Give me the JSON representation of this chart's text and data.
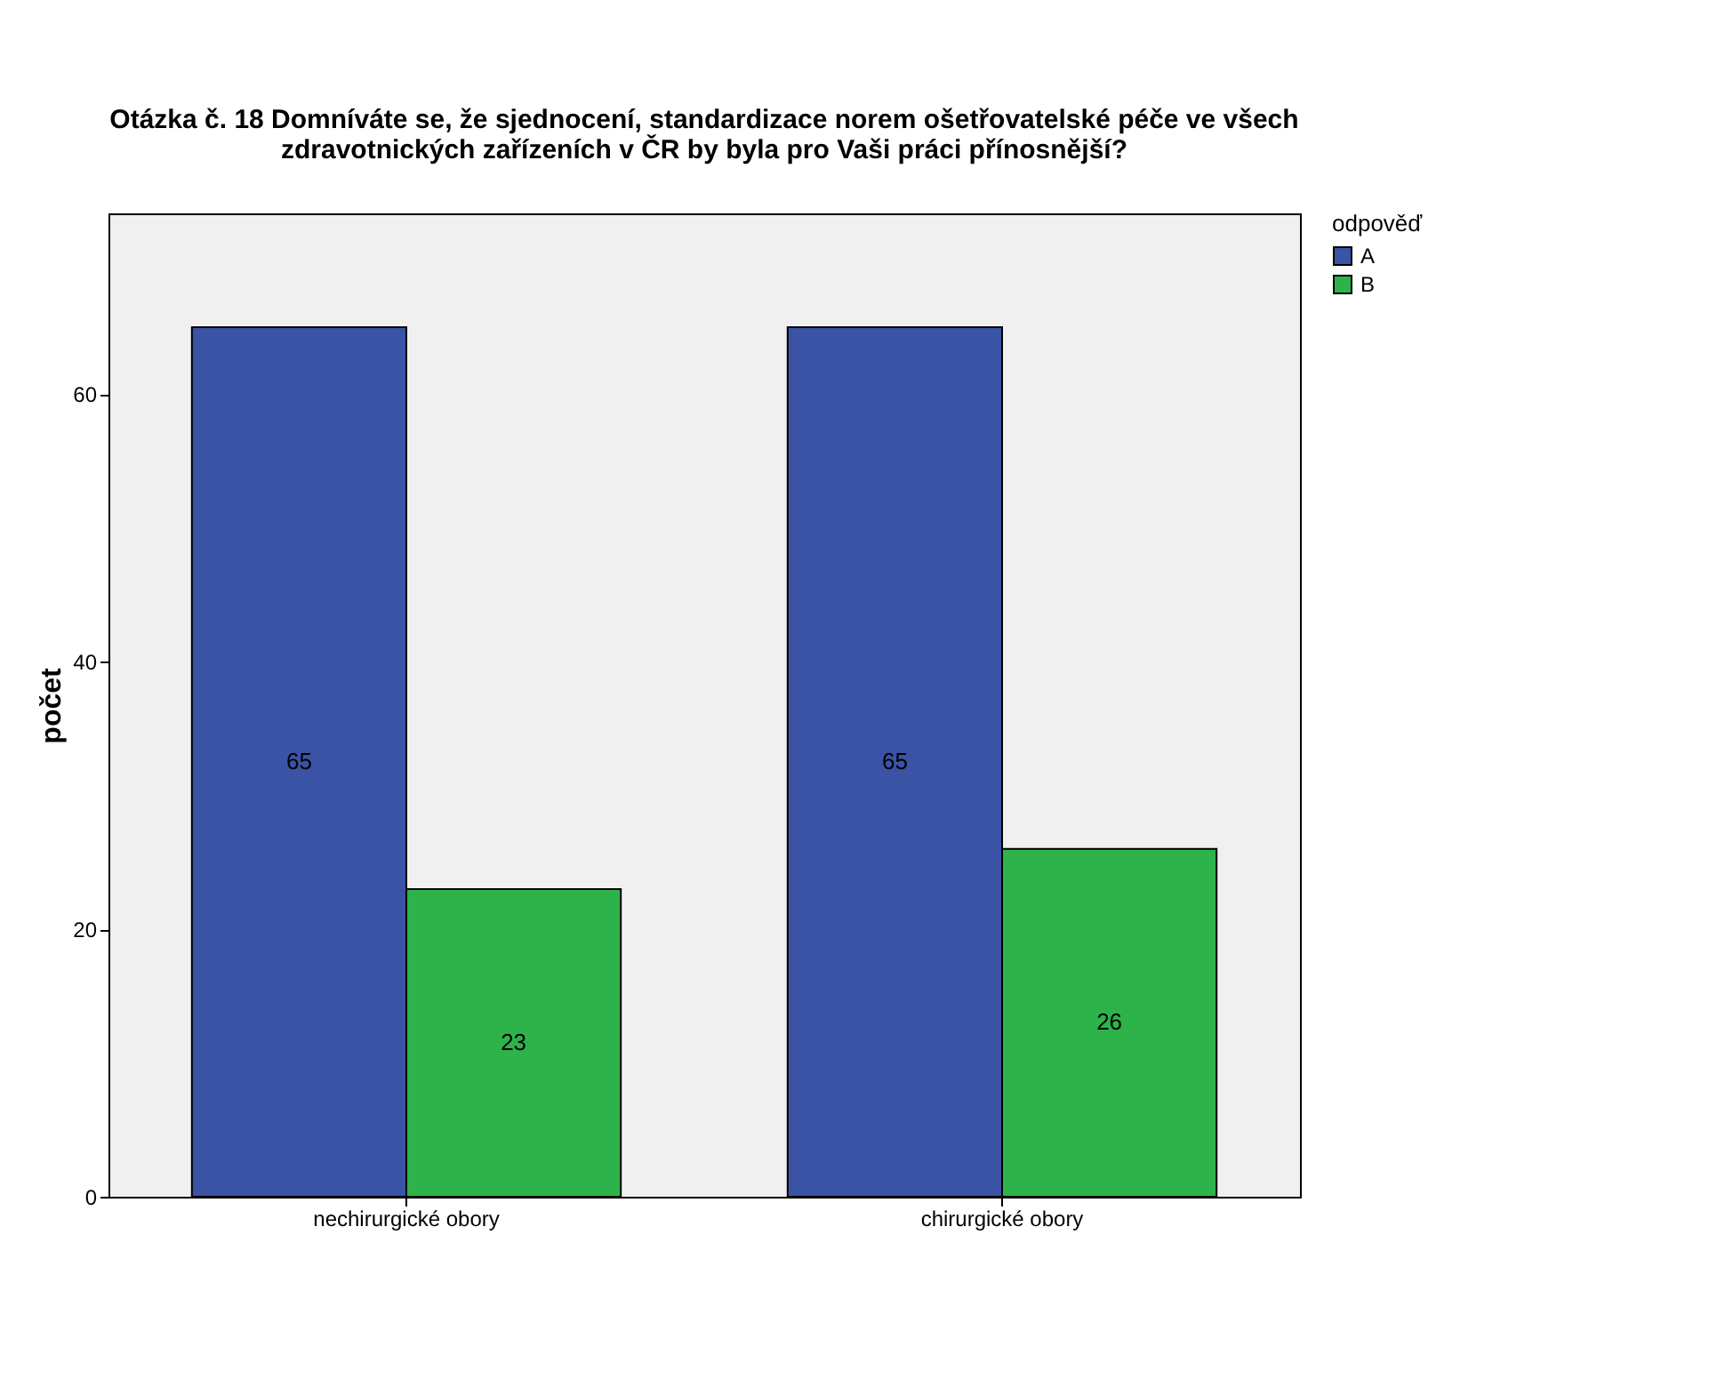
{
  "chart_data": {
    "type": "bar",
    "title": "Otázka č. 18 Domníváte se, že sjednocení, standardizace norem ošetřovatelské péče ve všech zdravotnických zařízeních v ČR by byla pro Vaši práci přínosnější?",
    "ylabel": "počet",
    "legend_title": "odpověď",
    "legend": "top right",
    "grid": false,
    "data_labels": true,
    "categories": [
      "nechirurgické obory",
      "chirurgické obory"
    ],
    "series": [
      {
        "name": "A",
        "color": "#3a53a4",
        "values": [
          65,
          65
        ]
      },
      {
        "name": "B",
        "color": "#2db34a",
        "values": [
          23,
          26
        ]
      }
    ],
    "ylim": [
      0,
      73.5
    ],
    "yticks": [
      0,
      20,
      40,
      60
    ]
  }
}
